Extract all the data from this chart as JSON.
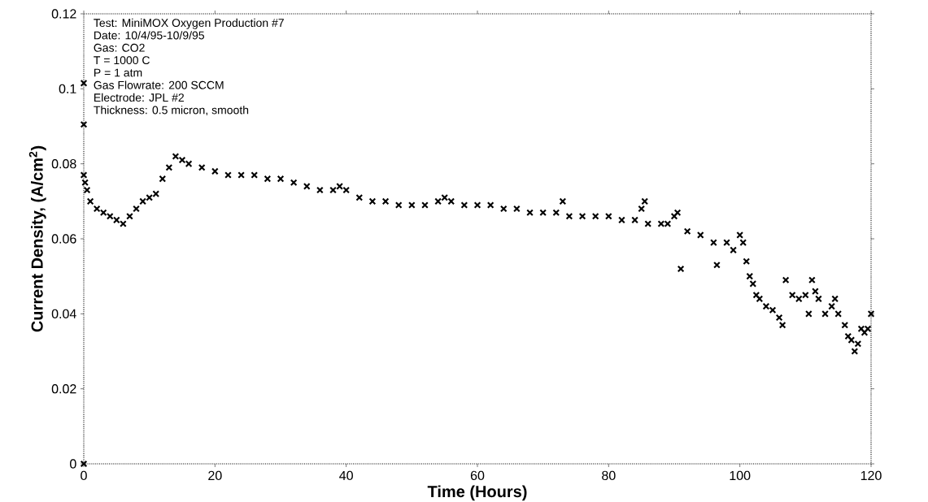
{
  "chart_data": {
    "type": "scatter",
    "xlabel": "Time (Hours)",
    "ylabel": "Current Density, (A/cm$^{2}$)",
    "annotations": [
      "Test: MiniMOX Oxygen Production #7",
      "Date:  10/4/95-10/9/95",
      "Gas: CO2",
      "T = 1000 C",
      "P = 1 atm",
      "Gas Flowrate: 200 SCCM",
      "Electrode: JPL #2",
      "Thickness: 0.5 micron, smooth"
    ],
    "x": [
      0,
      0,
      0,
      0,
      0.2,
      0.5,
      1,
      2,
      3,
      4,
      5,
      6,
      7,
      8,
      9,
      10,
      11,
      12,
      13,
      14,
      15,
      16,
      18,
      20,
      22,
      24,
      26,
      28,
      30,
      32,
      34,
      36,
      38,
      39,
      40,
      42,
      44,
      46,
      48,
      50,
      52,
      54,
      55,
      56,
      58,
      60,
      62,
      64,
      66,
      68,
      70,
      72,
      73,
      74,
      76,
      78,
      80,
      82,
      84,
      85,
      85.5,
      86,
      88,
      89,
      90,
      90.5,
      91,
      92,
      94,
      96,
      96.5,
      98,
      99,
      100,
      100.5,
      101,
      101.5,
      102,
      102.5,
      103,
      104,
      105,
      106,
      106.5,
      107,
      108,
      109,
      110,
      110.5,
      111,
      111.5,
      112,
      113,
      114,
      114.5,
      115,
      116,
      116.5,
      117,
      117.5,
      118,
      118.5,
      119,
      119.5,
      120
    ],
    "values": [
      0,
      0.1015,
      0.0905,
      0.077,
      0.075,
      0.073,
      0.07,
      0.068,
      0.067,
      0.066,
      0.065,
      0.064,
      0.066,
      0.068,
      0.07,
      0.071,
      0.072,
      0.076,
      0.079,
      0.082,
      0.081,
      0.08,
      0.079,
      0.078,
      0.077,
      0.077,
      0.077,
      0.076,
      0.076,
      0.075,
      0.074,
      0.073,
      0.073,
      0.074,
      0.073,
      0.071,
      0.07,
      0.07,
      0.069,
      0.069,
      0.069,
      0.07,
      0.071,
      0.07,
      0.069,
      0.069,
      0.069,
      0.068,
      0.068,
      0.067,
      0.067,
      0.067,
      0.07,
      0.066,
      0.066,
      0.066,
      0.066,
      0.065,
      0.065,
      0.068,
      0.07,
      0.064,
      0.064,
      0.064,
      0.066,
      0.067,
      0.052,
      0.062,
      0.061,
      0.059,
      0.053,
      0.059,
      0.057,
      0.061,
      0.059,
      0.054,
      0.05,
      0.048,
      0.045,
      0.044,
      0.042,
      0.041,
      0.039,
      0.037,
      0.049,
      0.045,
      0.044,
      0.045,
      0.04,
      0.049,
      0.046,
      0.044,
      0.04,
      0.042,
      0.044,
      0.04,
      0.037,
      0.034,
      0.033,
      0.03,
      0.032,
      0.036,
      0.035,
      0.036,
      0.04
    ],
    "color": "#000000",
    "marker": "cross",
    "xlim": [
      0,
      120
    ],
    "ylim": [
      0,
      0.12
    ],
    "xticks": [
      0,
      20,
      40,
      60,
      80,
      100,
      120
    ],
    "yticks": [
      0,
      0.02,
      0.04,
      0.06,
      0.08,
      0.1,
      0.12
    ]
  }
}
